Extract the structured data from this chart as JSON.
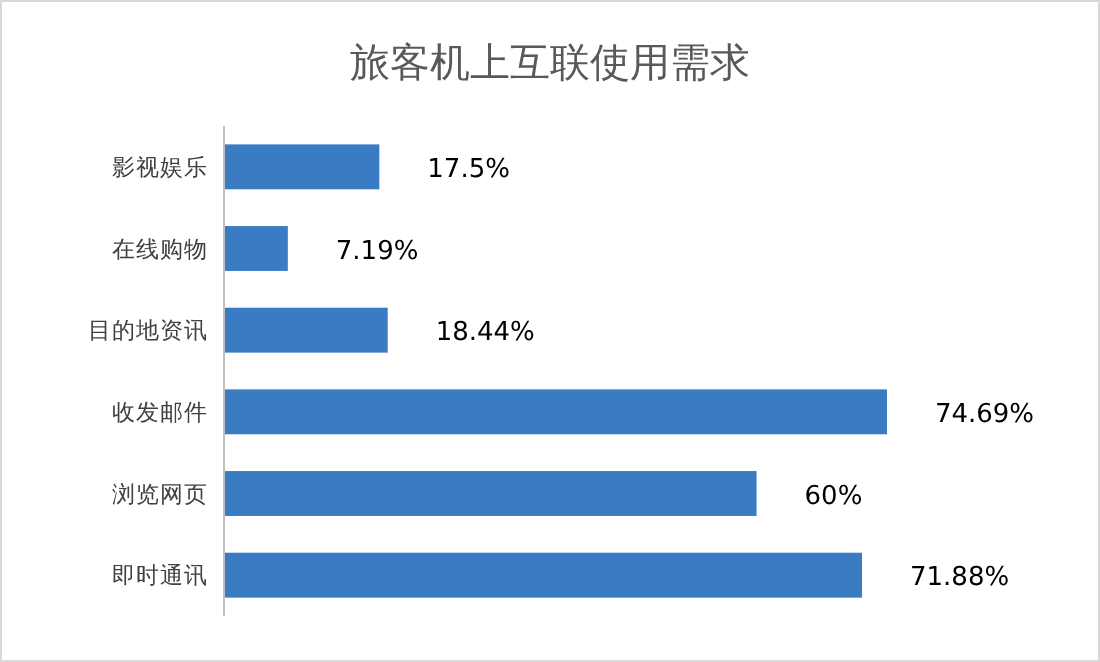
{
  "chart_data": {
    "type": "bar",
    "orientation": "horizontal",
    "title": "旅客机上互联使用需求",
    "categories": [
      "影视娱乐",
      "在线购物",
      "目的地资讯",
      "收发邮件",
      "浏览网页",
      "即时通讯"
    ],
    "values": [
      17.5,
      7.19,
      18.44,
      74.69,
      60,
      71.88
    ],
    "value_labels": [
      "17.5%",
      "7.19%",
      "18.44%",
      "74.69%",
      "60%",
      "71.88%"
    ],
    "color": "#3a7cc4"
  }
}
